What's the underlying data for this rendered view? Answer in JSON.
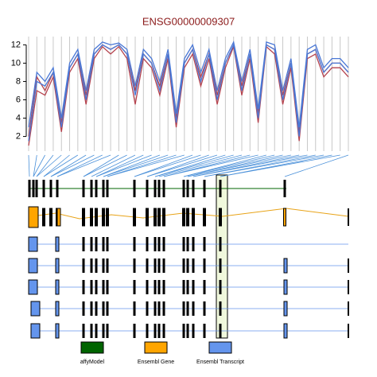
{
  "chart_data": {
    "type": "line",
    "title": "ENSG00000009307",
    "ylim": [
      0.4,
      12.9
    ],
    "yticks": [
      2,
      4,
      6,
      8,
      10,
      12
    ],
    "grid": true,
    "series": [
      {
        "color": "#b5434e",
        "values": [
          1,
          7,
          6.5,
          8.5,
          2.5,
          9,
          10.5,
          5.5,
          10.5,
          11.8,
          11,
          11.8,
          10.5,
          5.5,
          10.5,
          9.5,
          6.5,
          10.5,
          3,
          9.5,
          11,
          7.5,
          10.5,
          5.5,
          9.5,
          11.8,
          6.5,
          10.5,
          3.5,
          11.8,
          11,
          5.5,
          9.5,
          1.5,
          10.5,
          11,
          8.5,
          9.5,
          9.5,
          8.5
        ]
      },
      {
        "color": "#b5434e",
        "values": [
          2,
          8.5,
          7,
          9,
          3.5,
          9.5,
          11,
          6.5,
          11,
          12,
          11.5,
          12,
          11,
          7,
          11,
          10,
          7.5,
          11,
          4,
          10,
          11.5,
          8.5,
          11,
          6.5,
          10,
          12,
          7.5,
          11,
          4.5,
          12,
          11.5,
          6.5,
          10,
          2.5,
          11,
          11.5,
          9,
          10,
          10,
          9
        ]
      },
      {
        "color": "#4a78d6",
        "values": [
          1.5,
          8,
          7.5,
          9,
          3,
          9.5,
          11,
          6,
          11,
          12,
          11.5,
          12,
          11,
          6.5,
          11,
          10,
          7,
          11,
          3.5,
          10,
          11.5,
          8,
          11,
          6,
          10,
          12,
          7,
          11,
          4,
          12,
          11.5,
          6,
          10,
          2,
          11,
          11.5,
          9,
          10,
          10,
          9
        ]
      },
      {
        "color": "#4a78d6",
        "values": [
          3,
          9,
          8,
          9.5,
          4,
          10,
          11.5,
          7,
          11.5,
          12.3,
          12,
          12.2,
          11.5,
          7.5,
          11.5,
          10.5,
          8,
          11.5,
          4.5,
          10.5,
          12,
          9,
          11.5,
          7,
          10.5,
          12.3,
          8,
          11.5,
          5,
          12.3,
          12,
          7,
          10.5,
          3,
          11.5,
          12,
          9.5,
          10.5,
          10.5,
          9.5
        ]
      }
    ],
    "track_legend": [
      {
        "label": "affyModel",
        "color": "#006400"
      },
      {
        "label": "Ensembl Gene",
        "color": "#ffa500"
      },
      {
        "label": "Ensembl Transcript",
        "color": "#6495ed"
      }
    ]
  }
}
